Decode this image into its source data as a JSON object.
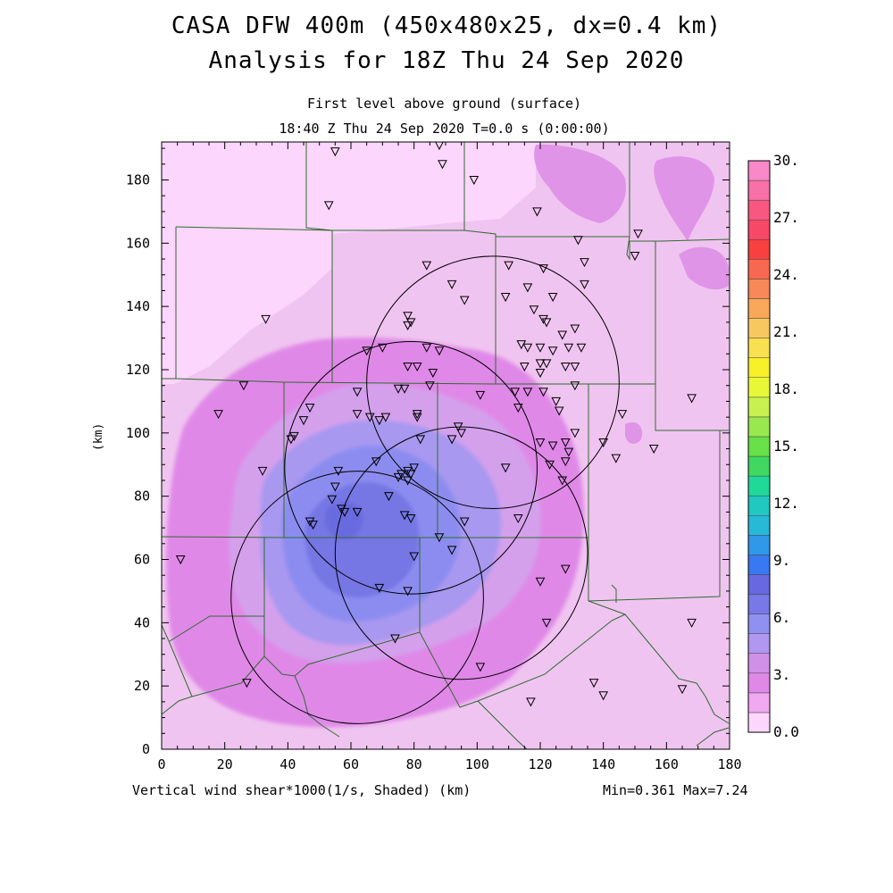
{
  "title": {
    "line1": "CASA DFW 400m (450x480x25, dx=0.4 km)",
    "line2": "Analysis for 18Z Thu 24 Sep 2020"
  },
  "subtitle": {
    "level": "First level above ground (surface)",
    "time": "18:40 Z Thu 24 Sep 2020   T=0.0 s (0:00:00)"
  },
  "footer": {
    "variable": "Vertical wind shear*1000(1/s, Shaded)  (km)",
    "range": "Min=0.361 Max=7.24"
  },
  "axes": {
    "ylabel": "(km)",
    "xlim": [
      0,
      180
    ],
    "ylim": [
      0,
      192
    ],
    "xticks": [
      "0",
      "20",
      "40",
      "60",
      "80",
      "100",
      "120",
      "140",
      "160",
      "180"
    ],
    "yticks": [
      "0",
      "20",
      "40",
      "60",
      "80",
      "100",
      "120",
      "140",
      "160",
      "180"
    ]
  },
  "colorbar": {
    "labels": [
      "0.0",
      "3.",
      "6.",
      "9.",
      "12.",
      "15.",
      "18.",
      "21.",
      "24.",
      "27.",
      "30."
    ],
    "colors": [
      "#fcd6fc",
      "#f0a8f0",
      "#e088e8",
      "#d090e8",
      "#b098f0",
      "#9090f0",
      "#7878e8",
      "#6868e0",
      "#3878f0",
      "#3098e8",
      "#28b8d8",
      "#20c8c0",
      "#20d898",
      "#40d860",
      "#68e048",
      "#98e850",
      "#c8f050",
      "#e8f838",
      "#f8f028",
      "#f8e050",
      "#f8c860",
      "#f8a858",
      "#f88858",
      "#f86850",
      "#f84040",
      "#f84868",
      "#f85880",
      "#f870a8",
      "#f888c8"
    ]
  },
  "map": {
    "value_range": {
      "min": 0.361,
      "max": 7.24
    },
    "radar_rings": [
      {
        "x": 62,
        "y": 48,
        "r": 40
      },
      {
        "x": 79,
        "y": 89,
        "r": 40
      },
      {
        "x": 105,
        "y": 116,
        "r": 40
      },
      {
        "x": 95,
        "y": 62,
        "r": 40
      }
    ],
    "stations": [
      [
        55,
        189
      ],
      [
        88,
        191
      ],
      [
        89,
        185
      ],
      [
        99,
        180
      ],
      [
        53,
        172
      ],
      [
        119,
        170
      ],
      [
        132,
        161
      ],
      [
        151,
        163
      ],
      [
        150,
        156
      ],
      [
        84,
        153
      ],
      [
        110,
        153
      ],
      [
        121,
        152
      ],
      [
        134,
        154
      ],
      [
        134,
        147
      ],
      [
        116,
        146
      ],
      [
        92,
        147
      ],
      [
        96,
        142
      ],
      [
        109,
        143
      ],
      [
        124,
        143
      ],
      [
        118,
        139
      ],
      [
        33,
        136
      ],
      [
        78,
        137
      ],
      [
        79,
        135
      ],
      [
        78,
        134
      ],
      [
        121,
        136
      ],
      [
        122,
        135
      ],
      [
        131,
        133
      ],
      [
        127,
        131
      ],
      [
        129,
        127
      ],
      [
        133,
        127
      ],
      [
        65,
        126
      ],
      [
        70,
        127
      ],
      [
        84,
        127
      ],
      [
        88,
        126
      ],
      [
        114,
        128
      ],
      [
        116,
        127
      ],
      [
        120,
        127
      ],
      [
        124,
        126
      ],
      [
        78,
        121
      ],
      [
        81,
        121
      ],
      [
        115,
        121
      ],
      [
        120,
        122
      ],
      [
        122,
        122
      ],
      [
        128,
        121
      ],
      [
        131,
        121
      ],
      [
        86,
        119
      ],
      [
        120,
        119
      ],
      [
        75,
        114
      ],
      [
        77,
        114
      ],
      [
        85,
        115
      ],
      [
        131,
        115
      ],
      [
        62,
        113
      ],
      [
        112,
        113
      ],
      [
        116,
        113
      ],
      [
        121,
        113
      ],
      [
        26,
        115
      ],
      [
        101,
        112
      ],
      [
        125,
        110
      ],
      [
        126,
        107
      ],
      [
        168,
        111
      ],
      [
        18,
        106
      ],
      [
        47,
        108
      ],
      [
        62,
        106
      ],
      [
        66,
        105
      ],
      [
        69,
        104
      ],
      [
        71,
        105
      ],
      [
        81,
        105
      ],
      [
        81,
        106
      ],
      [
        113,
        108
      ],
      [
        146,
        106
      ],
      [
        41,
        98
      ],
      [
        45,
        104
      ],
      [
        94,
        102
      ],
      [
        42,
        99
      ],
      [
        82,
        98
      ],
      [
        92,
        98
      ],
      [
        95,
        100
      ],
      [
        120,
        97
      ],
      [
        124,
        96
      ],
      [
        128,
        97
      ],
      [
        129,
        94
      ],
      [
        131,
        100
      ],
      [
        140,
        97
      ],
      [
        144,
        92
      ],
      [
        156,
        95
      ],
      [
        32,
        88
      ],
      [
        56,
        88
      ],
      [
        68,
        91
      ],
      [
        75,
        86
      ],
      [
        76,
        87
      ],
      [
        79,
        87
      ],
      [
        78,
        88
      ],
      [
        78,
        85
      ],
      [
        80,
        89
      ],
      [
        109,
        89
      ],
      [
        123,
        90
      ],
      [
        128,
        91
      ],
      [
        127,
        85
      ],
      [
        55,
        83
      ],
      [
        72,
        80
      ],
      [
        54,
        79
      ],
      [
        58,
        75
      ],
      [
        57,
        76
      ],
      [
        62,
        75
      ],
      [
        77,
        74
      ],
      [
        79,
        73
      ],
      [
        47,
        72
      ],
      [
        48,
        71
      ],
      [
        113,
        73
      ],
      [
        96,
        72
      ],
      [
        88,
        67
      ],
      [
        92,
        63
      ],
      [
        80,
        61
      ],
      [
        128,
        57
      ],
      [
        120,
        53
      ],
      [
        69,
        51
      ],
      [
        78,
        50
      ],
      [
        6,
        60
      ],
      [
        74,
        35
      ],
      [
        122,
        40
      ],
      [
        168,
        40
      ],
      [
        101,
        26
      ],
      [
        137,
        21
      ],
      [
        27,
        21
      ],
      [
        140,
        17
      ],
      [
        165,
        19
      ],
      [
        117,
        15
      ]
    ],
    "contour_levels": [
      1.0,
      2.0,
      3.0,
      4.0,
      5.0,
      6.0
    ]
  }
}
